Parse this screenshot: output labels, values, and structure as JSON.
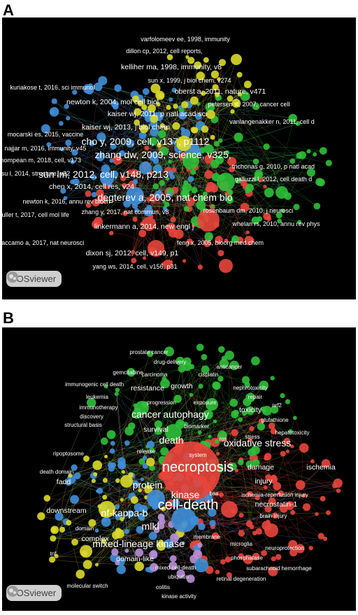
{
  "panels": [
    {
      "letter": "A",
      "logo_text": "VOSviewer",
      "clusters": {
        "red": "#e8453c",
        "green": "#2fbf3a",
        "blue": "#3f8fd8",
        "yellow": "#d9d92a"
      },
      "labels": [
        {
          "text": "varfolomeev ee, 1998, immunity",
          "size": "s"
        },
        {
          "text": "dillon cp, 2012, cell reports,",
          "size": "s"
        },
        {
          "text": "kelliher ma, 1998, immunity, v8",
          "size": "m"
        },
        {
          "text": "sun x, 1999, j biol chem, v274",
          "size": "s"
        },
        {
          "text": "kuriakose t, 2016, sci immunol",
          "size": "s"
        },
        {
          "text": "oberst a, 2011, nature, v471",
          "size": "m"
        },
        {
          "text": "newton k, 2004, mol cell biol",
          "size": "m"
        },
        {
          "text": "petersen sl, 2007, cancer cell",
          "size": "s"
        },
        {
          "text": "kaiser wj, 2011, p natl acad sci",
          "size": "m"
        },
        {
          "text": "vanlangenakker n, 2011, cell d",
          "size": "s"
        },
        {
          "text": "kaiser wj, 2013, j biol chem",
          "size": "m"
        },
        {
          "text": "mocarski es, 2015, vaccine",
          "size": "s"
        },
        {
          "text": "cho y, 2009, cell, v137, p1112",
          "size": "l"
        },
        {
          "text": "najjar m, 2016, immunity, v45",
          "size": "s"
        },
        {
          "text": "zhang dw, 2009, science, v325,",
          "size": "l"
        },
        {
          "text": "mompean m, 2018, cell, v173",
          "size": "s"
        },
        {
          "text": "trichonas g, 2010, p natl acad",
          "size": "s"
        },
        {
          "text": "su l, 2014, structure, v22",
          "size": "s"
        },
        {
          "text": "sun lm, 2012, cell, v148, p213",
          "size": "l"
        },
        {
          "text": "galluzzi l, 2012, cell death d",
          "size": "s"
        },
        {
          "text": "chen x, 2014, cell res, v24",
          "size": "m"
        },
        {
          "text": "degterev a, 2005, nat chem bio",
          "size": "l"
        },
        {
          "text": "newton k, 2016, annu rev bioch",
          "size": "s"
        },
        {
          "text": "rosenbaum dm, 2010, j neurosci",
          "size": "s"
        },
        {
          "text": "zhang y, 2017, nat commun, v8",
          "size": "s"
        },
        {
          "text": "muller t, 2017, cell mol life",
          "size": "s"
        },
        {
          "text": "whelan rs, 2010, annu rev phys",
          "size": "s"
        },
        {
          "text": "linkermann a, 2014, new engl j",
          "size": "m"
        },
        {
          "text": "caccamo a, 2017, nat neurosci",
          "size": "s"
        },
        {
          "text": "feng x, 2005, bioorg med chem",
          "size": "s"
        },
        {
          "text": "dixon sj, 2012, cell, v149, p1",
          "size": "m"
        },
        {
          "text": "yang ws, 2014, cell, v156, p31",
          "size": "s"
        }
      ]
    },
    {
      "letter": "B",
      "logo_text": "VOSviewer",
      "clusters": {
        "red": "#e8453c",
        "green": "#2fbf3a",
        "blue": "#3f8fd8",
        "yellow": "#d9d92a",
        "purple": "#b98fd6"
      },
      "labels": [
        {
          "text": "prostate cancer",
          "size": "s"
        },
        {
          "text": "drug-delivery",
          "size": "s"
        },
        {
          "text": "anticancer",
          "size": "s"
        },
        {
          "text": "gemcitabine",
          "size": "s"
        },
        {
          "text": "carcinoma",
          "size": "s"
        },
        {
          "text": "cisplatin",
          "size": "s"
        },
        {
          "text": "immunogenic cell death",
          "size": "s"
        },
        {
          "text": "resistance",
          "size": "m"
        },
        {
          "text": "growth",
          "size": "m"
        },
        {
          "text": "nephrotoxicity",
          "size": "s"
        },
        {
          "text": "repair",
          "size": "s"
        },
        {
          "text": "leukemia",
          "size": "s"
        },
        {
          "text": "nrf2",
          "size": "s"
        },
        {
          "text": "progression",
          "size": "s"
        },
        {
          "text": "exposure",
          "size": "s"
        },
        {
          "text": "toxicity",
          "size": "m"
        },
        {
          "text": "immunotherapy",
          "size": "s"
        },
        {
          "text": "cancer",
          "size": "l"
        },
        {
          "text": "glutathione",
          "size": "s"
        },
        {
          "text": "discovery",
          "size": "s"
        },
        {
          "text": "autophagy",
          "size": "l"
        },
        {
          "text": "structural basis",
          "size": "s"
        },
        {
          "text": "biomarker",
          "size": "s"
        },
        {
          "text": "survival",
          "size": "m"
        },
        {
          "text": "hepatotoxicity",
          "size": "s"
        },
        {
          "text": "stress",
          "size": "s"
        },
        {
          "text": "ros",
          "size": "s"
        },
        {
          "text": "death",
          "size": "l"
        },
        {
          "text": "oxidative stress",
          "size": "l"
        },
        {
          "text": "release",
          "size": "s"
        },
        {
          "text": "ripoptosome",
          "size": "s"
        },
        {
          "text": "system",
          "size": "s"
        },
        {
          "text": "damage",
          "size": "m"
        },
        {
          "text": "ischemia",
          "size": "m"
        },
        {
          "text": "necroptosis",
          "size": "xl"
        },
        {
          "text": "death domain",
          "size": "s"
        },
        {
          "text": "injury",
          "size": "m"
        },
        {
          "text": "fadd",
          "size": "m"
        },
        {
          "text": "protein",
          "size": "l"
        },
        {
          "text": "bax",
          "size": "s"
        },
        {
          "text": "kinase",
          "size": "l"
        },
        {
          "text": "ischemia-reperfusion injury",
          "size": "s"
        },
        {
          "text": "cell-death",
          "size": "xl"
        },
        {
          "text": "necrostatin-1",
          "size": "m"
        },
        {
          "text": "downstream",
          "size": "m"
        },
        {
          "text": "nf-kappa-b",
          "size": "l"
        },
        {
          "text": "brain injury",
          "size": "s"
        },
        {
          "text": "domain",
          "size": "s"
        },
        {
          "text": "mlkl",
          "size": "l"
        },
        {
          "text": "complex",
          "size": "m"
        },
        {
          "text": "membrane",
          "size": "s"
        },
        {
          "text": "microglia",
          "size": "s"
        },
        {
          "text": "neuroprotection",
          "size": "s"
        },
        {
          "text": "mixed-lineage kinase",
          "size": "l"
        },
        {
          "text": "phosphatase",
          "size": "s"
        },
        {
          "text": "domain-like",
          "size": "m"
        },
        {
          "text": "mixed cell-death",
          "size": "s"
        },
        {
          "text": "subarachnoid hemorrhage",
          "size": "s"
        },
        {
          "text": "ubiquitin",
          "size": "s"
        },
        {
          "text": "retinal degeneration",
          "size": "s"
        },
        {
          "text": "molecular switch",
          "size": "s"
        },
        {
          "text": "colitis",
          "size": "s"
        },
        {
          "text": "kinase activity",
          "size": "s"
        },
        {
          "text": "tnf",
          "size": "s"
        }
      ]
    }
  ]
}
